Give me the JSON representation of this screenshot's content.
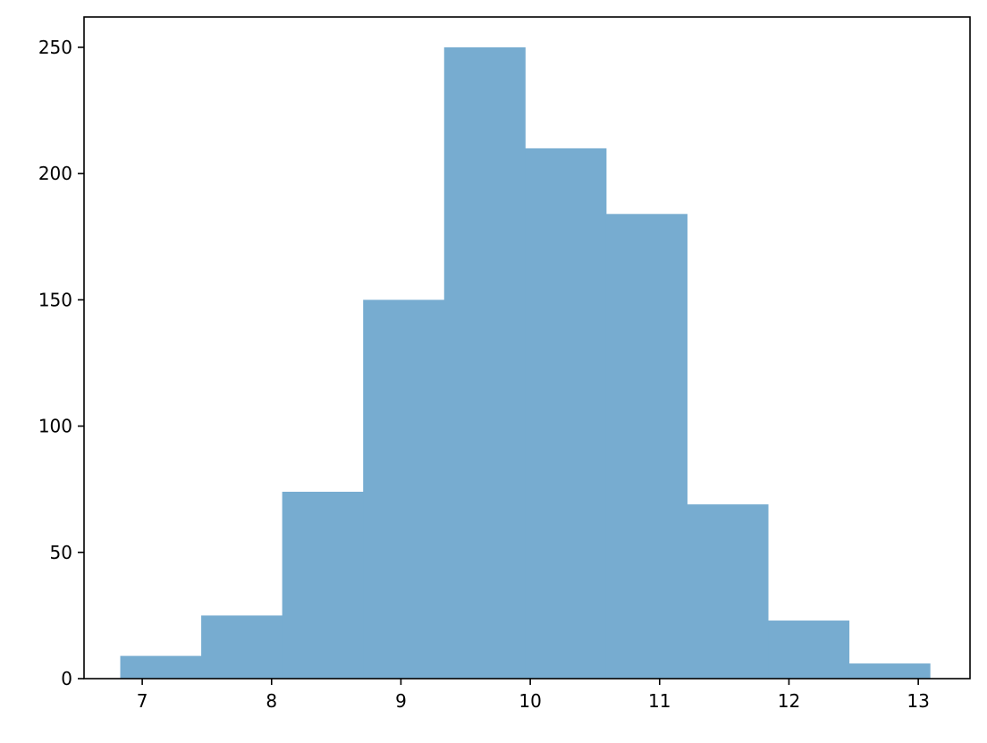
{
  "chart_data": {
    "type": "bar",
    "title": "",
    "xlabel": "",
    "ylabel": "",
    "bin_edges": [
      6.83,
      7.456,
      8.082,
      8.708,
      9.334,
      9.96,
      10.586,
      11.212,
      11.838,
      12.464,
      13.09
    ],
    "values": [
      9,
      25,
      74,
      150,
      250,
      210,
      184,
      69,
      23,
      6
    ],
    "xlim": [
      6.55,
      13.4
    ],
    "ylim": [
      0,
      262
    ],
    "xticks": [
      7,
      8,
      9,
      10,
      11,
      12,
      13
    ],
    "xtick_labels": [
      "7",
      "8",
      "9",
      "10",
      "11",
      "12",
      "13"
    ],
    "yticks": [
      0,
      50,
      100,
      150,
      200,
      250
    ],
    "ytick_labels": [
      "0",
      "50",
      "100",
      "150",
      "200",
      "250"
    ],
    "bar_color": "#77acd0",
    "grid": false,
    "legend": "none"
  }
}
